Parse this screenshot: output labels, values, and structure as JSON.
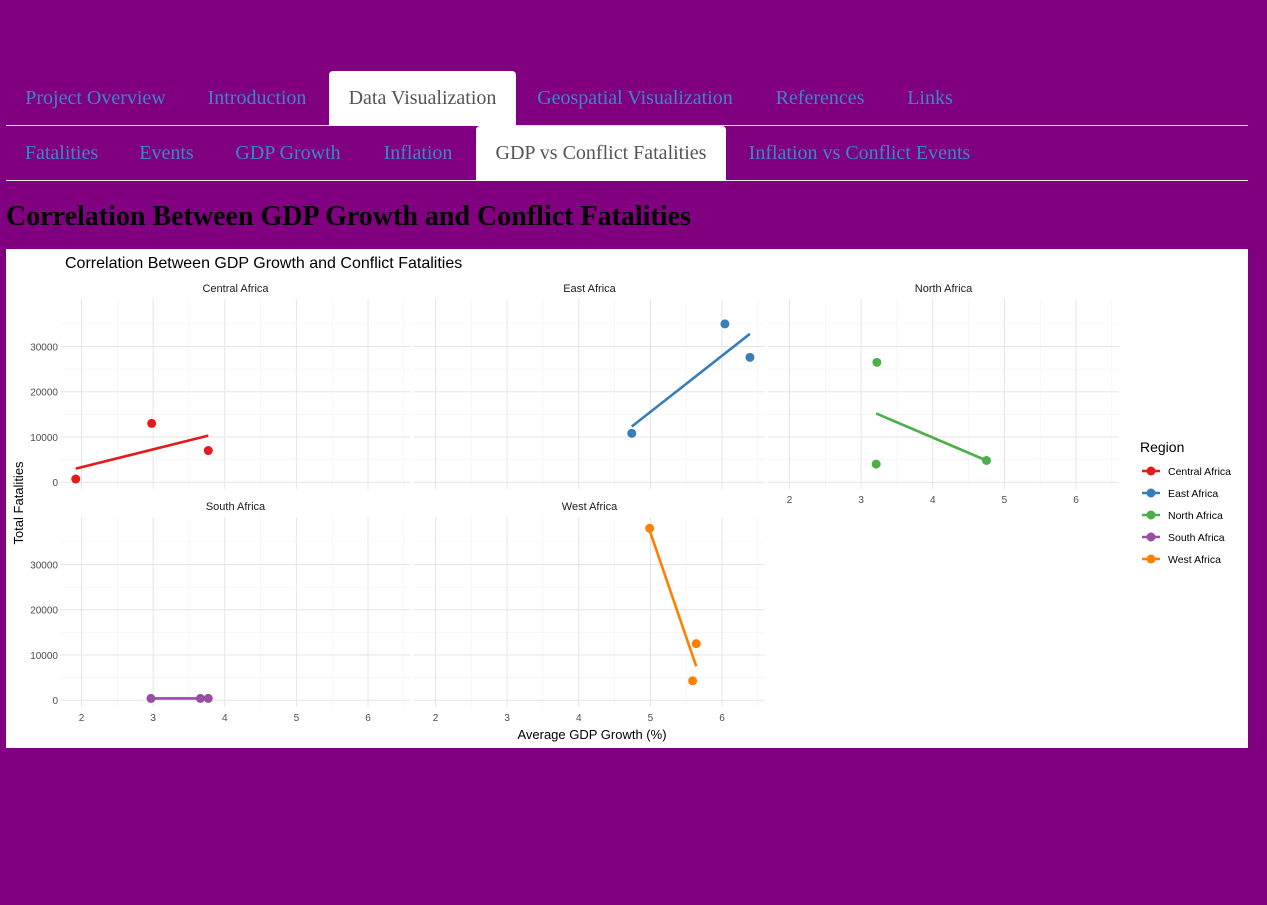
{
  "nav": {
    "main_tabs": [
      {
        "label": "Project Overview",
        "active": false
      },
      {
        "label": "Introduction",
        "active": false
      },
      {
        "label": "Data Visualization",
        "active": true
      },
      {
        "label": "Geospatial Visualization",
        "active": false
      },
      {
        "label": "References",
        "active": false
      },
      {
        "label": "Links",
        "active": false
      }
    ],
    "sub_tabs": [
      {
        "label": "Fatalities",
        "active": false
      },
      {
        "label": "Events",
        "active": false
      },
      {
        "label": "GDP Growth",
        "active": false
      },
      {
        "label": "Inflation",
        "active": false
      },
      {
        "label": "GDP vs Conflict Fatalities",
        "active": true
      },
      {
        "label": "Inflation vs Conflict Events",
        "active": false
      }
    ]
  },
  "page": {
    "heading": "Correlation Between GDP Growth and Conflict Fatalities"
  },
  "colors": {
    "page_background": "#800080",
    "tab_link": "#3a87c8",
    "tab_active_text": "#555555"
  },
  "chart_data": {
    "type": "scatter",
    "title": "Correlation Between GDP Growth and Conflict Fatalities",
    "xlabel": "Average GDP Growth (%)",
    "ylabel": "Total Fatalities",
    "xlim": [
      1.7,
      6.6
    ],
    "ylim": [
      -1500,
      40500
    ],
    "x_ticks": [
      2,
      3,
      4,
      5,
      6
    ],
    "y_ticks": [
      0,
      10000,
      20000,
      30000
    ],
    "grid": true,
    "legend": {
      "title": "Region",
      "position": "right"
    },
    "facets": [
      {
        "name": "Central Africa",
        "color": "#e41a1c",
        "points": [
          [
            1.92,
            700
          ],
          [
            2.98,
            13000
          ],
          [
            3.77,
            7000
          ]
        ],
        "fit": [
          [
            1.92,
            3000
          ],
          [
            3.77,
            10300
          ]
        ]
      },
      {
        "name": "East Africa",
        "color": "#377eb8",
        "points": [
          [
            4.74,
            10800
          ],
          [
            6.04,
            35000
          ],
          [
            6.39,
            27600
          ]
        ],
        "fit": [
          [
            4.74,
            12300
          ],
          [
            6.39,
            32800
          ]
        ]
      },
      {
        "name": "North Africa",
        "color": "#4daf4a",
        "points": [
          [
            3.22,
            26500
          ],
          [
            3.21,
            4000
          ],
          [
            4.75,
            4800
          ]
        ],
        "fit": [
          [
            3.21,
            15200
          ],
          [
            4.75,
            4800
          ]
        ]
      },
      {
        "name": "South Africa",
        "color": "#984ea3",
        "points": [
          [
            2.97,
            400
          ],
          [
            3.66,
            400
          ],
          [
            3.77,
            400
          ]
        ],
        "fit": [
          [
            2.97,
            400
          ],
          [
            3.77,
            400
          ]
        ]
      },
      {
        "name": "West Africa",
        "color": "#ff7f00",
        "points": [
          [
            4.99,
            38000
          ],
          [
            5.64,
            12500
          ],
          [
            5.59,
            4300
          ]
        ],
        "fit": [
          [
            4.99,
            37500
          ],
          [
            5.64,
            7500
          ]
        ]
      }
    ]
  }
}
